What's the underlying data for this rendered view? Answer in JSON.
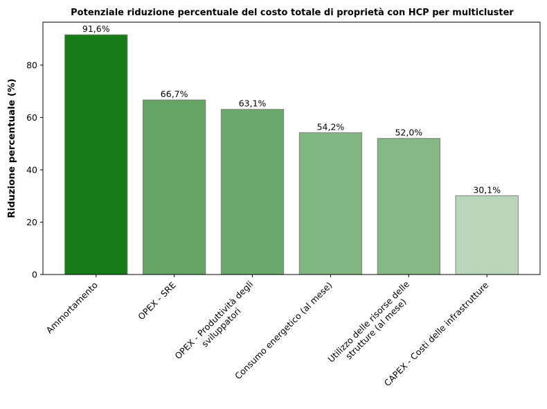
{
  "chart_data": {
    "type": "bar",
    "title": "Potenziale riduzione percentuale del costo totale di proprietà con HCP per multicluster",
    "xlabel": "",
    "ylabel": "Riduzione percentuale (%)",
    "ylim": [
      0,
      96.4
    ],
    "yticks": [
      "0",
      "20",
      "40",
      "60",
      "80"
    ],
    "grid": false,
    "categories": [
      [
        "Ammortamento"
      ],
      [
        "OPEX - SRE"
      ],
      [
        "OPEX - Produttività degli",
        "sviluppatori"
      ],
      [
        "Consumo energetico (al mese)"
      ],
      [
        "Utilizzo delle risorse delle",
        "strutture (al mese)"
      ],
      [
        "CAPEX - Costi delle infrastrutture"
      ]
    ],
    "values": [
      91.6,
      66.7,
      63.1,
      54.2,
      52.0,
      30.1
    ],
    "data_labels": [
      "91,6%",
      "66,7%",
      "63,1%",
      "54,2%",
      "52,0%",
      "30,1%"
    ],
    "colors": [
      "#167a16",
      "#64a464",
      "#69a86a",
      "#80b680",
      "#85b885",
      "#bad6ba"
    ]
  }
}
